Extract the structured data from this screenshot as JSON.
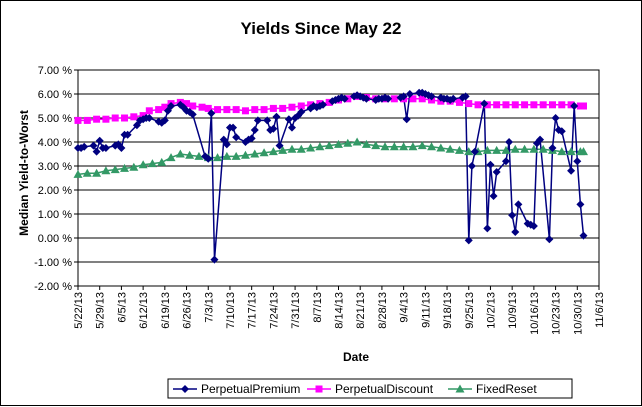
{
  "chart_data": {
    "type": "line",
    "title": "Yields Since May 22",
    "xlabel": "Date",
    "ylabel": "Median Yield-to-Worst",
    "ylim": [
      -2,
      7
    ],
    "yticks": [
      "-2.00 %",
      "-1.00 %",
      "0.00 %",
      "1.00 %",
      "2.00 %",
      "3.00 %",
      "4.00 %",
      "5.00 %",
      "6.00 %",
      "7.00 %"
    ],
    "xlim": [
      "2013-05-22",
      "2013-11-06"
    ],
    "xtick_labels": [
      "5/22/13",
      "5/29/13",
      "6/5/13",
      "6/12/13",
      "6/19/13",
      "6/26/13",
      "7/3/13",
      "7/10/13",
      "7/17/13",
      "7/24/13",
      "7/31/13",
      "8/7/13",
      "8/14/13",
      "8/21/13",
      "8/28/13",
      "9/4/13",
      "9/11/13",
      "9/18/13",
      "9/25/13",
      "10/2/13",
      "10/9/13",
      "10/16/13",
      "10/23/13",
      "10/30/13",
      "11/6/13"
    ],
    "grid": "horizontal",
    "legend_position": "bottom",
    "series": [
      {
        "name": "PerpetualPremium",
        "color": "#000080",
        "marker": "diamond",
        "points": [
          [
            "2013-05-22",
            3.75
          ],
          [
            "2013-05-23",
            3.75
          ],
          [
            "2013-05-24",
            3.8
          ],
          [
            "2013-05-27",
            3.85
          ],
          [
            "2013-05-28",
            3.6
          ],
          [
            "2013-05-29",
            4.05
          ],
          [
            "2013-05-30",
            3.75
          ],
          [
            "2013-05-31",
            3.75
          ],
          [
            "2013-06-03",
            3.85
          ],
          [
            "2013-06-04",
            3.9
          ],
          [
            "2013-06-05",
            3.75
          ],
          [
            "2013-06-06",
            4.3
          ],
          [
            "2013-06-07",
            4.3
          ],
          [
            "2013-06-10",
            4.7
          ],
          [
            "2013-06-11",
            4.9
          ],
          [
            "2013-06-12",
            4.95
          ],
          [
            "2013-06-13",
            5.0
          ],
          [
            "2013-06-14",
            5.0
          ],
          [
            "2013-06-17",
            4.85
          ],
          [
            "2013-06-18",
            4.8
          ],
          [
            "2013-06-19",
            4.9
          ],
          [
            "2013-06-20",
            5.3
          ],
          [
            "2013-06-21",
            5.5
          ],
          [
            "2013-06-24",
            5.55
          ],
          [
            "2013-06-25",
            5.45
          ],
          [
            "2013-06-26",
            5.3
          ],
          [
            "2013-06-27",
            5.25
          ],
          [
            "2013-06-28",
            5.15
          ],
          [
            "2013-07-02",
            3.4
          ],
          [
            "2013-07-03",
            3.3
          ],
          [
            "2013-07-04",
            5.2
          ],
          [
            "2013-07-05",
            -0.9
          ],
          [
            "2013-07-08",
            4.1
          ],
          [
            "2013-07-09",
            3.9
          ],
          [
            "2013-07-10",
            4.6
          ],
          [
            "2013-07-11",
            4.6
          ],
          [
            "2013-07-12",
            4.2
          ],
          [
            "2013-07-15",
            4.0
          ],
          [
            "2013-07-16",
            4.1
          ],
          [
            "2013-07-17",
            4.15
          ],
          [
            "2013-07-18",
            4.5
          ],
          [
            "2013-07-19",
            4.9
          ],
          [
            "2013-07-22",
            4.9
          ],
          [
            "2013-07-23",
            4.5
          ],
          [
            "2013-07-24",
            4.55
          ],
          [
            "2013-07-25",
            5.05
          ],
          [
            "2013-07-26",
            3.85
          ],
          [
            "2013-07-29",
            4.95
          ],
          [
            "2013-07-30",
            4.6
          ],
          [
            "2013-07-31",
            5.0
          ],
          [
            "2013-08-01",
            5.1
          ],
          [
            "2013-08-02",
            5.25
          ],
          [
            "2013-08-05",
            5.4
          ],
          [
            "2013-08-06",
            5.5
          ],
          [
            "2013-08-07",
            5.45
          ],
          [
            "2013-08-08",
            5.5
          ],
          [
            "2013-08-09",
            5.55
          ],
          [
            "2013-08-12",
            5.7
          ],
          [
            "2013-08-13",
            5.75
          ],
          [
            "2013-08-14",
            5.8
          ],
          [
            "2013-08-15",
            5.85
          ],
          [
            "2013-08-16",
            5.8
          ],
          [
            "2013-08-19",
            5.9
          ],
          [
            "2013-08-20",
            5.95
          ],
          [
            "2013-08-21",
            5.9
          ],
          [
            "2013-08-22",
            5.85
          ],
          [
            "2013-08-23",
            5.8
          ],
          [
            "2013-08-26",
            5.75
          ],
          [
            "2013-08-27",
            5.8
          ],
          [
            "2013-08-28",
            5.8
          ],
          [
            "2013-08-29",
            5.85
          ],
          [
            "2013-08-30",
            5.8
          ],
          [
            "2013-09-03",
            5.85
          ],
          [
            "2013-09-04",
            5.9
          ],
          [
            "2013-09-05",
            4.95
          ],
          [
            "2013-09-06",
            6.0
          ],
          [
            "2013-09-09",
            6.05
          ],
          [
            "2013-09-10",
            6.05
          ],
          [
            "2013-09-11",
            6.0
          ],
          [
            "2013-09-12",
            5.95
          ],
          [
            "2013-09-13",
            5.9
          ],
          [
            "2013-09-16",
            5.85
          ],
          [
            "2013-09-17",
            5.8
          ],
          [
            "2013-09-18",
            5.8
          ],
          [
            "2013-09-19",
            5.75
          ],
          [
            "2013-09-20",
            5.8
          ],
          [
            "2013-09-23",
            5.85
          ],
          [
            "2013-09-24",
            5.9
          ],
          [
            "2013-09-25",
            -0.1
          ],
          [
            "2013-09-26",
            3.0
          ],
          [
            "2013-09-27",
            3.6
          ],
          [
            "2013-09-30",
            5.6
          ],
          [
            "2013-10-01",
            0.4
          ],
          [
            "2013-10-02",
            3.05
          ],
          [
            "2013-10-03",
            1.75
          ],
          [
            "2013-10-04",
            2.75
          ],
          [
            "2013-10-07",
            3.2
          ],
          [
            "2013-10-08",
            4.0
          ],
          [
            "2013-10-09",
            0.95
          ],
          [
            "2013-10-10",
            0.25
          ],
          [
            "2013-10-11",
            1.4
          ],
          [
            "2013-10-14",
            0.6
          ],
          [
            "2013-10-15",
            0.55
          ],
          [
            "2013-10-16",
            0.5
          ],
          [
            "2013-10-17",
            3.95
          ],
          [
            "2013-10-18",
            4.1
          ],
          [
            "2013-10-21",
            -0.05
          ],
          [
            "2013-10-22",
            3.75
          ],
          [
            "2013-10-23",
            5.0
          ],
          [
            "2013-10-24",
            4.5
          ],
          [
            "2013-10-25",
            4.45
          ],
          [
            "2013-10-28",
            2.8
          ],
          [
            "2013-10-29",
            5.5
          ],
          [
            "2013-10-30",
            3.2
          ],
          [
            "2013-10-31",
            1.4
          ],
          [
            "2013-11-01",
            0.1
          ]
        ]
      },
      {
        "name": "PerpetualDiscount",
        "color": "#FF00FF",
        "marker": "square",
        "points": [
          [
            "2013-05-22",
            4.9
          ],
          [
            "2013-05-25",
            4.9
          ],
          [
            "2013-05-28",
            4.95
          ],
          [
            "2013-05-31",
            4.95
          ],
          [
            "2013-06-03",
            5.0
          ],
          [
            "2013-06-06",
            5.0
          ],
          [
            "2013-06-09",
            5.05
          ],
          [
            "2013-06-12",
            5.1
          ],
          [
            "2013-06-14",
            5.3
          ],
          [
            "2013-06-17",
            5.35
          ],
          [
            "2013-06-19",
            5.45
          ],
          [
            "2013-06-21",
            5.6
          ],
          [
            "2013-06-24",
            5.65
          ],
          [
            "2013-06-26",
            5.6
          ],
          [
            "2013-06-28",
            5.5
          ],
          [
            "2013-07-01",
            5.45
          ],
          [
            "2013-07-03",
            5.4
          ],
          [
            "2013-07-06",
            5.35
          ],
          [
            "2013-07-09",
            5.35
          ],
          [
            "2013-07-12",
            5.35
          ],
          [
            "2013-07-15",
            5.3
          ],
          [
            "2013-07-18",
            5.35
          ],
          [
            "2013-07-21",
            5.35
          ],
          [
            "2013-07-24",
            5.4
          ],
          [
            "2013-07-27",
            5.4
          ],
          [
            "2013-07-30",
            5.45
          ],
          [
            "2013-08-02",
            5.5
          ],
          [
            "2013-08-05",
            5.55
          ],
          [
            "2013-08-08",
            5.6
          ],
          [
            "2013-08-11",
            5.65
          ],
          [
            "2013-08-14",
            5.75
          ],
          [
            "2013-08-17",
            5.8
          ],
          [
            "2013-08-20",
            5.9
          ],
          [
            "2013-08-23",
            5.85
          ],
          [
            "2013-08-26",
            5.8
          ],
          [
            "2013-08-29",
            5.8
          ],
          [
            "2013-09-01",
            5.8
          ],
          [
            "2013-09-04",
            5.8
          ],
          [
            "2013-09-07",
            5.8
          ],
          [
            "2013-09-10",
            5.8
          ],
          [
            "2013-09-13",
            5.75
          ],
          [
            "2013-09-16",
            5.7
          ],
          [
            "2013-09-19",
            5.7
          ],
          [
            "2013-09-22",
            5.65
          ],
          [
            "2013-09-25",
            5.6
          ],
          [
            "2013-09-28",
            5.55
          ],
          [
            "2013-10-01",
            5.55
          ],
          [
            "2013-10-04",
            5.55
          ],
          [
            "2013-10-07",
            5.55
          ],
          [
            "2013-10-10",
            5.55
          ],
          [
            "2013-10-13",
            5.55
          ],
          [
            "2013-10-16",
            5.55
          ],
          [
            "2013-10-19",
            5.55
          ],
          [
            "2013-10-22",
            5.55
          ],
          [
            "2013-10-25",
            5.55
          ],
          [
            "2013-10-28",
            5.55
          ],
          [
            "2013-10-31",
            5.5
          ],
          [
            "2013-11-01",
            5.5
          ]
        ]
      },
      {
        "name": "FixedReset",
        "color": "#339966",
        "marker": "triangle",
        "points": [
          [
            "2013-05-22",
            2.65
          ],
          [
            "2013-05-25",
            2.7
          ],
          [
            "2013-05-28",
            2.7
          ],
          [
            "2013-05-31",
            2.8
          ],
          [
            "2013-06-03",
            2.85
          ],
          [
            "2013-06-06",
            2.9
          ],
          [
            "2013-06-09",
            2.95
          ],
          [
            "2013-06-12",
            3.05
          ],
          [
            "2013-06-15",
            3.1
          ],
          [
            "2013-06-18",
            3.15
          ],
          [
            "2013-06-21",
            3.35
          ],
          [
            "2013-06-24",
            3.5
          ],
          [
            "2013-06-27",
            3.45
          ],
          [
            "2013-06-30",
            3.4
          ],
          [
            "2013-07-03",
            3.35
          ],
          [
            "2013-07-06",
            3.35
          ],
          [
            "2013-07-09",
            3.4
          ],
          [
            "2013-07-12",
            3.4
          ],
          [
            "2013-07-15",
            3.45
          ],
          [
            "2013-07-18",
            3.5
          ],
          [
            "2013-07-21",
            3.55
          ],
          [
            "2013-07-24",
            3.6
          ],
          [
            "2013-07-27",
            3.65
          ],
          [
            "2013-07-30",
            3.7
          ],
          [
            "2013-08-02",
            3.7
          ],
          [
            "2013-08-05",
            3.75
          ],
          [
            "2013-08-08",
            3.8
          ],
          [
            "2013-08-11",
            3.85
          ],
          [
            "2013-08-14",
            3.9
          ],
          [
            "2013-08-17",
            3.95
          ],
          [
            "2013-08-20",
            4.0
          ],
          [
            "2013-08-23",
            3.9
          ],
          [
            "2013-08-26",
            3.85
          ],
          [
            "2013-08-29",
            3.8
          ],
          [
            "2013-09-01",
            3.8
          ],
          [
            "2013-09-04",
            3.8
          ],
          [
            "2013-09-07",
            3.8
          ],
          [
            "2013-09-10",
            3.85
          ],
          [
            "2013-09-13",
            3.8
          ],
          [
            "2013-09-16",
            3.75
          ],
          [
            "2013-09-19",
            3.7
          ],
          [
            "2013-09-22",
            3.65
          ],
          [
            "2013-09-25",
            3.6
          ],
          [
            "2013-09-28",
            3.6
          ],
          [
            "2013-10-01",
            3.65
          ],
          [
            "2013-10-04",
            3.65
          ],
          [
            "2013-10-07",
            3.65
          ],
          [
            "2013-10-10",
            3.7
          ],
          [
            "2013-10-13",
            3.7
          ],
          [
            "2013-10-16",
            3.7
          ],
          [
            "2013-10-19",
            3.7
          ],
          [
            "2013-10-22",
            3.65
          ],
          [
            "2013-10-25",
            3.6
          ],
          [
            "2013-10-28",
            3.6
          ],
          [
            "2013-10-31",
            3.6
          ],
          [
            "2013-11-01",
            3.6
          ]
        ]
      }
    ]
  }
}
